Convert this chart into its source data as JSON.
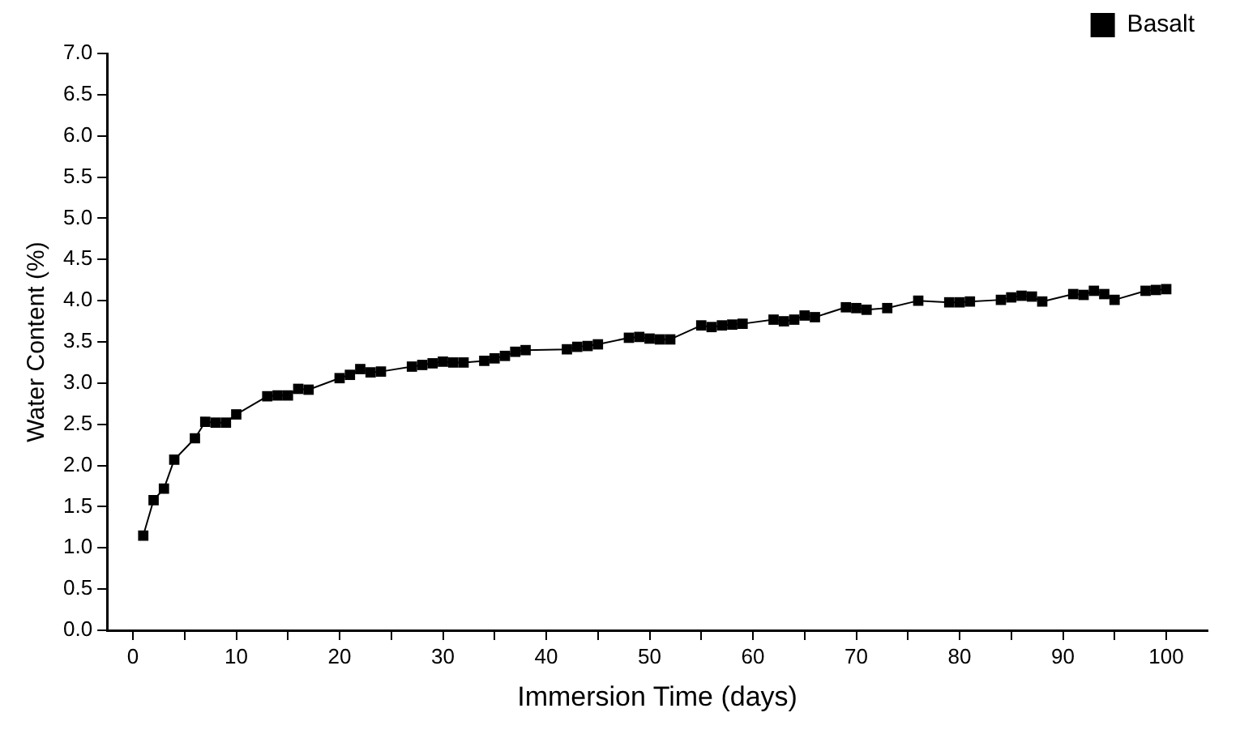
{
  "chart_data": {
    "type": "line",
    "xlabel": "Immersion Time (days)",
    "ylabel": "Water Content (%)",
    "x": [
      1,
      2,
      3,
      4,
      6,
      7,
      8,
      9,
      10,
      13,
      14,
      15,
      16,
      17,
      20,
      21,
      22,
      23,
      24,
      27,
      28,
      29,
      30,
      31,
      32,
      34,
      35,
      36,
      37,
      38,
      42,
      43,
      44,
      45,
      48,
      49,
      50,
      51,
      52,
      55,
      56,
      57,
      58,
      59,
      62,
      63,
      64,
      65,
      66,
      69,
      70,
      71,
      73,
      76,
      79,
      80,
      81,
      84,
      85,
      86,
      87,
      88,
      91,
      92,
      93,
      94,
      95,
      98,
      99,
      100
    ],
    "series": [
      {
        "name": "Basalt",
        "color": "#000000",
        "values": [
          1.15,
          1.58,
          1.72,
          2.07,
          2.33,
          2.53,
          2.52,
          2.52,
          2.62,
          2.84,
          2.85,
          2.85,
          2.93,
          2.92,
          3.06,
          3.1,
          3.17,
          3.13,
          3.14,
          3.2,
          3.22,
          3.24,
          3.26,
          3.25,
          3.25,
          3.27,
          3.3,
          3.33,
          3.38,
          3.4,
          3.41,
          3.44,
          3.45,
          3.47,
          3.55,
          3.56,
          3.54,
          3.53,
          3.53,
          3.7,
          3.68,
          3.7,
          3.71,
          3.72,
          3.77,
          3.75,
          3.77,
          3.82,
          3.8,
          3.92,
          3.91,
          3.89,
          3.91,
          4.0,
          3.98,
          3.98,
          3.99,
          4.01,
          4.04,
          4.06,
          4.05,
          3.99,
          4.08,
          4.07,
          4.12,
          4.08,
          4.01,
          4.12,
          4.13,
          4.14
        ]
      }
    ],
    "xlim": [
      -2.5,
      104
    ],
    "xticks": [
      0,
      {
        "value": 5,
        "label": null
      },
      10,
      {
        "value": 15,
        "label": null
      },
      20,
      {
        "value": 25,
        "label": null
      },
      30,
      {
        "value": 35,
        "label": null
      },
      40,
      {
        "value": 45,
        "label": null
      },
      50,
      {
        "value": 55,
        "label": null
      },
      60,
      {
        "value": 65,
        "label": null
      },
      70,
      {
        "value": 75,
        "label": null
      },
      80,
      {
        "value": 85,
        "label": null
      },
      90,
      {
        "value": 95,
        "label": null
      },
      100
    ],
    "ylim": [
      0,
      7
    ],
    "yticks": [
      {
        "value": 0,
        "label": "0.0"
      },
      {
        "value": 0.5,
        "label": "0.5"
      },
      {
        "value": 1,
        "label": "1.0"
      },
      {
        "value": 1.5,
        "label": "1.5"
      },
      {
        "value": 2,
        "label": "2.0"
      },
      {
        "value": 2.5,
        "label": "2.5"
      },
      {
        "value": 3,
        "label": "3.0"
      },
      {
        "value": 3.5,
        "label": "3.5"
      },
      {
        "value": 4,
        "label": "4.0"
      },
      {
        "value": 4.5,
        "label": "4.5"
      },
      {
        "value": 5,
        "label": "5.0"
      },
      {
        "value": 5.5,
        "label": "5.5"
      },
      {
        "value": 6,
        "label": "6.0"
      },
      {
        "value": 6.5,
        "label": "6.5"
      },
      {
        "value": 7,
        "label": "7.0"
      }
    ],
    "grid": false,
    "legend": "top right",
    "marker": "square",
    "line_style": "solid"
  }
}
